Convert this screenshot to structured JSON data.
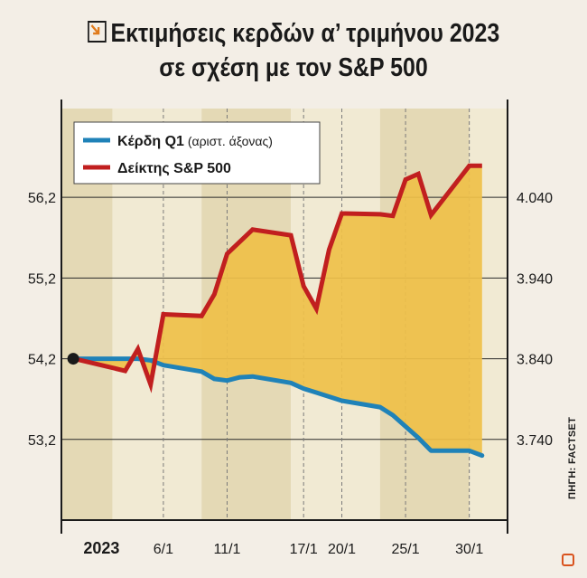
{
  "title": {
    "line1": "Εκτιμήσεις κερδών α’ τριμήνου 2023",
    "line2": "σε σχέση με τον S&P 500"
  },
  "source": "ΠΗΓΗ: FACTSET",
  "colors": {
    "earnings": "#1f82b8",
    "sp500": "#c11f1f",
    "fill": "#efc049",
    "band_dark": "#e4d9b5",
    "band_light": "#f1ead3",
    "background": "#f3eee6"
  },
  "chart_data": {
    "type": "line",
    "x": [
      "2022-12-30",
      "2023-01-03",
      "2023-01-04",
      "2023-01-05",
      "2023-01-06",
      "2023-01-09",
      "2023-01-10",
      "2023-01-11",
      "2023-01-12",
      "2023-01-13",
      "2023-01-16",
      "2023-01-17",
      "2023-01-18",
      "2023-01-19",
      "2023-01-20",
      "2023-01-23",
      "2023-01-24",
      "2023-01-25",
      "2023-01-26",
      "2023-01-27",
      "2023-01-30",
      "2023-01-31"
    ],
    "x_tick_labels": [
      "2023",
      "6/1",
      "11/1",
      "17/1",
      "20/1",
      "25/1",
      "30/1"
    ],
    "series": [
      {
        "name": "Κέρδη Q1",
        "axis_note": "(αριστ. άξονας)",
        "axis": "left",
        "values": [
          54.2,
          54.2,
          54.2,
          54.18,
          54.12,
          54.04,
          53.95,
          53.93,
          53.97,
          53.98,
          53.9,
          53.83,
          53.78,
          53.73,
          53.68,
          53.6,
          53.5,
          53.36,
          53.22,
          53.06,
          53.06,
          53.0
        ]
      },
      {
        "name": "Δείκτης S&P 500",
        "axis": "right",
        "values": [
          3840,
          3825,
          3852,
          3808,
          3895,
          3893,
          3920,
          3970,
          3985,
          4000,
          3993,
          3930,
          3902,
          3975,
          4020,
          4019,
          4017,
          4062,
          4069,
          4018,
          4079,
          4079
        ]
      }
    ],
    "left_axis": {
      "ticks": [
        "56,2",
        "55,2",
        "54,2",
        "53,2"
      ],
      "tick_values": [
        56.2,
        55.2,
        54.2,
        53.2
      ],
      "ylim": [
        52.2,
        57.3
      ]
    },
    "right_axis": {
      "ticks": [
        "4.040",
        "3.940",
        "3.840",
        "3.740"
      ],
      "tick_values": [
        4040,
        3940,
        3840,
        3740
      ],
      "ylim": [
        3640,
        4150
      ]
    },
    "grid": true,
    "legend": "top-left",
    "fill_between": true
  }
}
